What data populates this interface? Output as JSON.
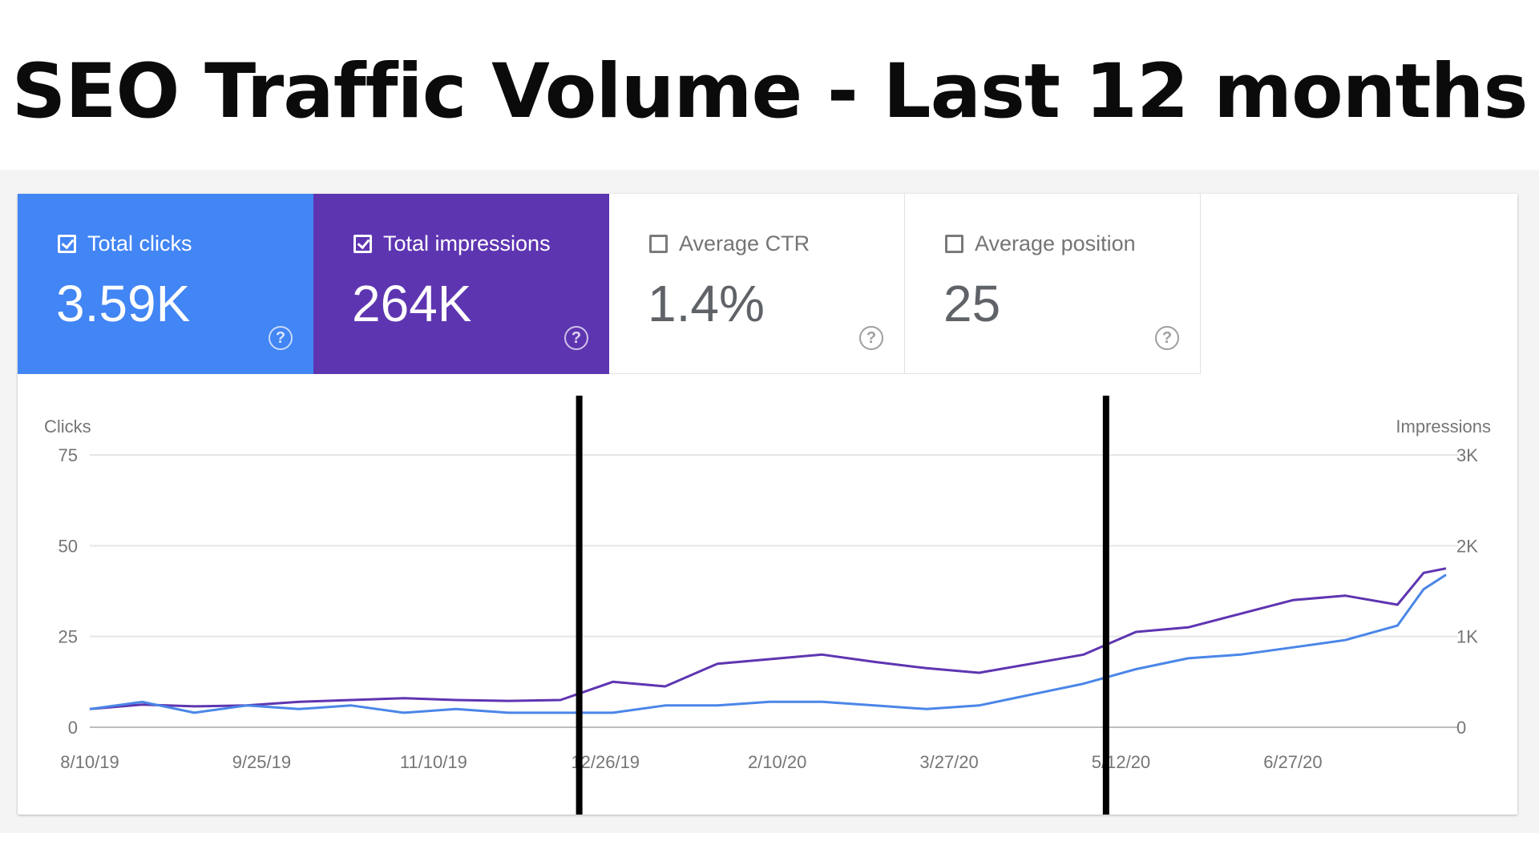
{
  "page_title": "SEO Traffic Volume - Last 12 months",
  "colors": {
    "clicks": "#4a86e8",
    "impressions": "#5e35b1",
    "clicks_tile": "#4285f4",
    "impressions_tile": "#5e35b1",
    "divider": "#000000"
  },
  "metrics": [
    {
      "label": "Total clicks",
      "value": "3.59K",
      "checked": true,
      "color": "#4285f4",
      "help": "?"
    },
    {
      "label": "Total impressions",
      "value": "264K",
      "checked": true,
      "color": "#5e35b1",
      "help": "?"
    },
    {
      "label": "Average CTR",
      "value": "1.4%",
      "checked": false,
      "help": "?"
    },
    {
      "label": "Average position",
      "value": "25",
      "checked": false,
      "help": "?"
    }
  ],
  "chart_data": {
    "type": "line",
    "left_axis_label": "Clicks",
    "right_axis_label": "Impressions",
    "left_ticks": [
      "0",
      "25",
      "50",
      "75"
    ],
    "right_ticks": [
      "0",
      "1K",
      "2K",
      "3K"
    ],
    "ylim_left": [
      0,
      75
    ],
    "ylim_right": [
      0,
      3000
    ],
    "x_tick_labels": [
      "8/10/19",
      "9/25/19",
      "11/10/19",
      "12/26/19",
      "2/10/20",
      "3/27/20",
      "5/12/20",
      "6/27/20"
    ],
    "x_range": [
      "8/10/19",
      "8/7/20"
    ],
    "grid": true,
    "legend": "metric tiles above chart",
    "vertical_markers": [
      "12/19/19",
      "5/8/20"
    ],
    "series": [
      {
        "name": "Total clicks",
        "axis": "left",
        "color": "#4a86e8",
        "x": [
          "8/10/19",
          "8/24/19",
          "9/7/19",
          "9/21/19",
          "10/5/19",
          "10/19/19",
          "11/2/19",
          "11/16/19",
          "11/30/19",
          "12/14/19",
          "12/28/19",
          "1/11/20",
          "1/25/20",
          "2/8/20",
          "2/22/20",
          "3/7/20",
          "3/21/20",
          "4/4/20",
          "4/18/20",
          "5/2/20",
          "5/16/20",
          "5/30/20",
          "6/13/20",
          "6/27/20",
          "7/11/20",
          "7/25/20",
          "8/1/20",
          "8/7/20"
        ],
        "values": [
          5,
          7,
          4,
          6,
          5,
          6,
          4,
          5,
          4,
          4,
          4,
          6,
          6,
          7,
          7,
          6,
          5,
          6,
          9,
          12,
          16,
          19,
          20,
          22,
          24,
          28,
          38,
          42
        ]
      },
      {
        "name": "Total impressions",
        "axis": "right",
        "color": "#5e35b1",
        "x": [
          "8/10/19",
          "8/24/19",
          "9/7/19",
          "9/21/19",
          "10/5/19",
          "10/19/19",
          "11/2/19",
          "11/16/19",
          "11/30/19",
          "12/14/19",
          "12/28/19",
          "1/11/20",
          "1/25/20",
          "2/8/20",
          "2/22/20",
          "3/7/20",
          "3/21/20",
          "4/4/20",
          "4/18/20",
          "5/2/20",
          "5/16/20",
          "5/30/20",
          "6/13/20",
          "6/27/20",
          "7/11/20",
          "7/25/20",
          "8/1/20",
          "8/7/20"
        ],
        "values": [
          200,
          250,
          230,
          240,
          280,
          300,
          320,
          300,
          290,
          300,
          500,
          450,
          700,
          750,
          800,
          720,
          650,
          600,
          700,
          800,
          1050,
          1100,
          1250,
          1400,
          1450,
          1350,
          1700,
          1750
        ]
      }
    ]
  }
}
